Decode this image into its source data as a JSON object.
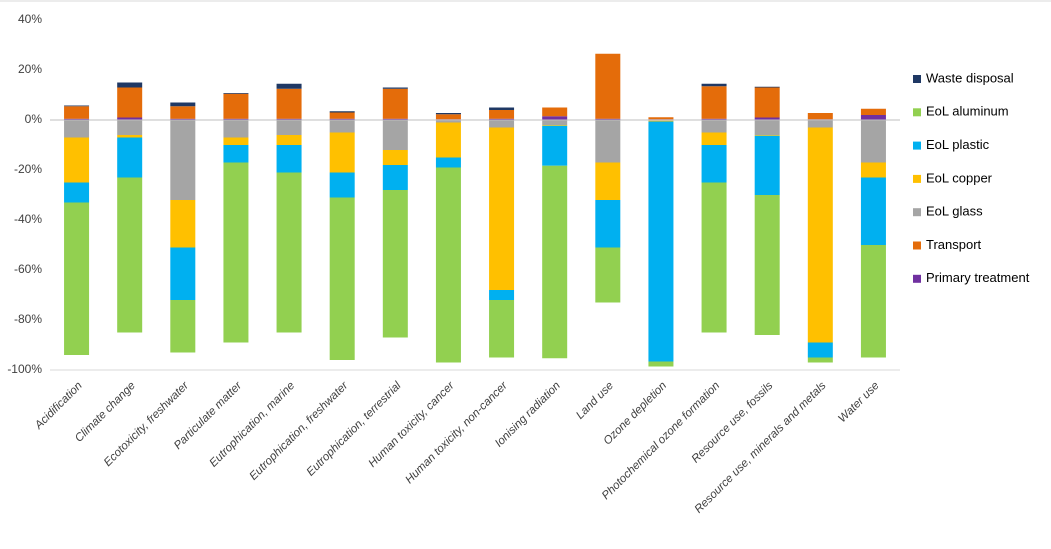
{
  "chart_data": {
    "type": "stacked_bar",
    "categories": [
      "Acidification",
      "Climate change",
      "Ecotoxicity, freshwater",
      "Particulate matter",
      "Eutrophication, marine",
      "Eutrophication, freshwater",
      "Eutrophication, terrestrial",
      "Human toxicity, cancer",
      "Human toxicity, non-cancer",
      "Ionising radiation",
      "Land use",
      "Ozone depletion",
      "Photochemical ozone formation",
      "Resource use, fossils",
      "Resource use, minerals and metals",
      "Water use"
    ],
    "series": [
      {
        "name": "Primary treatment",
        "color": "#7030a0",
        "values": [
          0.5,
          1,
          0.5,
          0.5,
          0.5,
          0.5,
          0.5,
          0.3,
          0.5,
          1.5,
          0.5,
          0.3,
          0.5,
          1,
          0.3,
          2
        ]
      },
      {
        "name": "Transport",
        "color": "#e46c0a",
        "values": [
          5,
          12,
          5,
          10,
          12,
          2.5,
          12,
          2,
          3.5,
          3.5,
          26,
          0.8,
          13,
          12,
          2.5,
          2.5
        ]
      },
      {
        "name": "EoL glass",
        "color": "#a5a5a5",
        "values": [
          -7,
          -6,
          -32,
          -7,
          -6,
          -5,
          -12,
          -1,
          -3,
          -2,
          -17,
          -0.3,
          -5,
          -6,
          -3,
          -17
        ]
      },
      {
        "name": "EoL copper",
        "color": "#ffc000",
        "values": [
          -18,
          -1,
          -19,
          -3,
          -4,
          -16,
          -6,
          -14,
          -65,
          -0.3,
          -15,
          -0.3,
          -5,
          -0.3,
          -86,
          -6
        ]
      },
      {
        "name": "EoL plastic",
        "color": "#00b0f0",
        "values": [
          -8,
          -16,
          -21,
          -7,
          -11,
          -10,
          -10,
          -4,
          -4,
          -16,
          -19,
          -96,
          -15,
          -23.7,
          -6,
          -27
        ]
      },
      {
        "name": "EoL aluminum",
        "color": "#92d050",
        "values": [
          -61,
          -62,
          -21,
          -72,
          -64,
          -65,
          -59,
          -78,
          -23,
          -77,
          -22,
          -2,
          -60,
          -56,
          -2,
          -45
        ]
      },
      {
        "name": "Waste disposal",
        "color": "#1f3864",
        "values": [
          0.3,
          2,
          1.5,
          0.3,
          2,
          0.5,
          0.5,
          0.5,
          1,
          0,
          0,
          0,
          1,
          0.3,
          0,
          0
        ]
      }
    ],
    "ylim": [
      -100,
      40
    ],
    "yticks": [
      {
        "value": -100,
        "label": "-100%"
      },
      {
        "value": -80,
        "label": "-80%"
      },
      {
        "value": -60,
        "label": "-60%"
      },
      {
        "value": -40,
        "label": "-40%"
      },
      {
        "value": -20,
        "label": "-20%"
      },
      {
        "value": 0,
        "label": "0%"
      },
      {
        "value": 20,
        "label": "20%"
      },
      {
        "value": 40,
        "label": "40%"
      }
    ],
    "grid": false
  }
}
